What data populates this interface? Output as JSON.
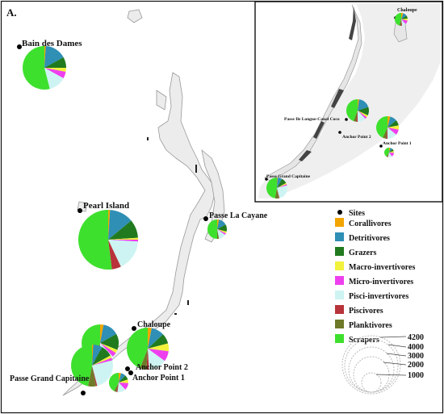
{
  "panel_label": "A.",
  "sites": [
    {
      "id": "bain-des-dames",
      "name": "Bain des Dames"
    },
    {
      "id": "pearl-island",
      "name": "Pearl Island"
    },
    {
      "id": "passe-la-cayane",
      "name": "Passe La Cayane"
    },
    {
      "id": "chaloupe",
      "name": "Chaloupe"
    },
    {
      "id": "anchor-point-2",
      "name": "Anchor Point 2"
    },
    {
      "id": "anchor-point-1",
      "name": "Anchor Point 1"
    },
    {
      "id": "passe-grand-capitaine",
      "name": "Passe Grand Capitaine"
    }
  ],
  "inset_sites": [
    {
      "id": "inset-chaloupe",
      "name": "Chaloupe"
    },
    {
      "id": "inset-passe-ile-longue",
      "name": "Passe Ile Longue-Canal Coco"
    },
    {
      "id": "inset-anchor-point-2",
      "name": "Anchor Point 2"
    },
    {
      "id": "inset-anchor-point-1",
      "name": "Anchor Point 1"
    },
    {
      "id": "inset-passe-grand-capitaine",
      "name": "Passe Grand Capitaine"
    }
  ],
  "legend": {
    "sites_label": "Sites",
    "categories": [
      {
        "name": "Corallivores",
        "color": "#f2a400"
      },
      {
        "name": "Detritivores",
        "color": "#2f8fb5"
      },
      {
        "name": "Grazers",
        "color": "#217a1e"
      },
      {
        "name": "Macro-invertivores",
        "color": "#f2f23c"
      },
      {
        "name": "Micro-invertivores",
        "color": "#ee3fee"
      },
      {
        "name": "Pisci-invertivores",
        "color": "#cdf4f2"
      },
      {
        "name": "Piscivores",
        "color": "#b8333a"
      },
      {
        "name": "Planktivores",
        "color": "#6f7a28"
      },
      {
        "name": "Scrapers",
        "color": "#3ee02e"
      }
    ],
    "size_scale": [
      "4200",
      "4000",
      "3000",
      "2000",
      "1000"
    ]
  }
}
